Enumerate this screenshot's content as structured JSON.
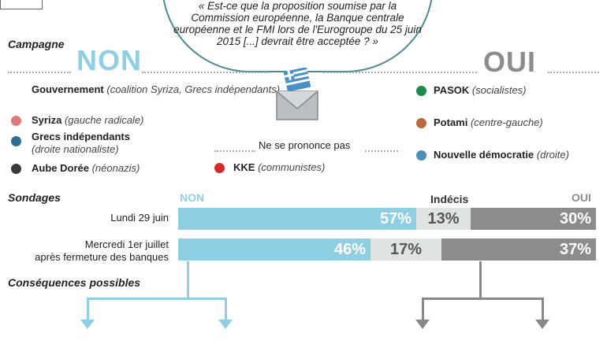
{
  "question": "« Est-ce que la proposition soumise par la Commission européenne, la Banque centrale européenne et le FMI lors de l'Eurogroupe du 25 juin 2015 [...] devrait être acceptée ? »",
  "campagne": {
    "title": "Campagne",
    "non_label": "NON",
    "oui_label": "OUI",
    "non_parties": [
      {
        "name": "Gouvernement",
        "desc": "(coalition Syriza, Grecs indépendants)",
        "color": ""
      },
      {
        "name": "Syriza",
        "desc": "(gauche radicale)",
        "color": "#e07b7b"
      },
      {
        "name": "Grecs indépendants",
        "desc": "(droite nationaliste)",
        "color": "#2f6e94"
      },
      {
        "name": "Aube Dorée",
        "desc": "(néonazis)",
        "color": "#3a3a3a"
      }
    ],
    "oui_parties": [
      {
        "name": "PASOK",
        "desc": "(socialistes)",
        "color": "#1f8a4c"
      },
      {
        "name": "Potami",
        "desc": "(centre-gauche)",
        "color": "#b86a3c"
      },
      {
        "name": "Nouvelle démocratie",
        "desc": "(droite)",
        "color": "#4a90b8"
      }
    ],
    "neutral_label": "Ne se prononce pas",
    "neutral_party": {
      "name": "KKE",
      "desc": "(communistes)",
      "color": "#d42a2a"
    }
  },
  "sondages": {
    "title": "Sondages",
    "col_non": "NON",
    "col_undecided": "Indécis",
    "col_oui": "OUI",
    "rows": [
      {
        "label": "Lundi 29 juin",
        "label2": "",
        "non": 57,
        "undecided": 13,
        "oui": 30,
        "non_text": "57%",
        "undecided_text": "13%",
        "oui_text": "30%"
      },
      {
        "label": "Mercredi 1er juillet",
        "label2": "après fermeture des banques",
        "non": 46,
        "undecided": 17,
        "oui": 37,
        "non_text": "46%",
        "undecided_text": "17%",
        "oui_text": "37%"
      }
    ]
  },
  "consequences": {
    "title": "Conséquences  possibles"
  },
  "colors": {
    "non": "#8fcfe3",
    "undecided": "#dfe3e4",
    "oui": "#8c8c8c",
    "question_border": "#4d8a93"
  }
}
